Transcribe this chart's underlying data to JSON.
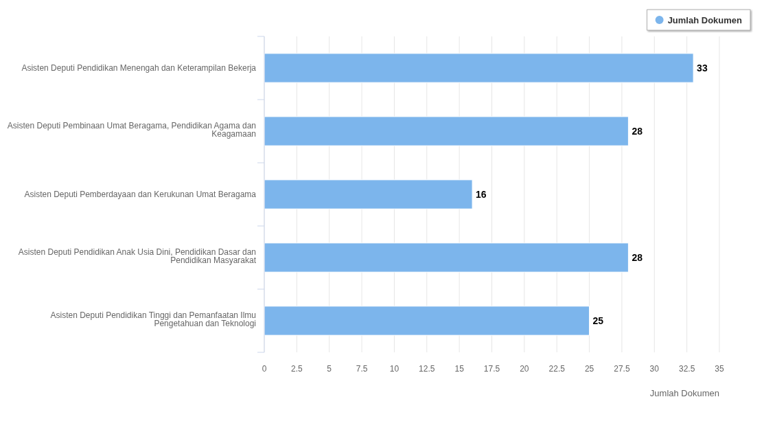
{
  "chart_data": {
    "type": "bar",
    "orientation": "horizontal",
    "categories": [
      "Asisten Deputi Pendidikan Menengah dan Keterampilan Bekerja",
      "Asisten Deputi Pembinaan Umat Beragama, Pendidikan Agama dan Keagamaan",
      "Asisten Deputi Pemberdayaan dan Kerukunan Umat Beragama",
      "Asisten Deputi Pendidikan Anak Usia Dini, Pendidikan Dasar dan Pendidikan Masyarakat",
      "Asisten Deputi Pendidikan Tinggi dan Pemanfaatan Ilmu Pengetahuan dan Teknologi"
    ],
    "series": [
      {
        "name": "Jumlah Dokumen",
        "color": "#7cb5ec",
        "values": [
          33,
          28,
          16,
          28,
          25
        ]
      }
    ],
    "xlabel": "Jumlah Dokumen",
    "xlim": [
      0,
      35
    ],
    "xticks": [
      0,
      2.5,
      5,
      7.5,
      10,
      12.5,
      15,
      17.5,
      20,
      22.5,
      25,
      27.5,
      30,
      32.5,
      35
    ],
    "grid": "x",
    "legend": "top right",
    "data_labels": true
  }
}
